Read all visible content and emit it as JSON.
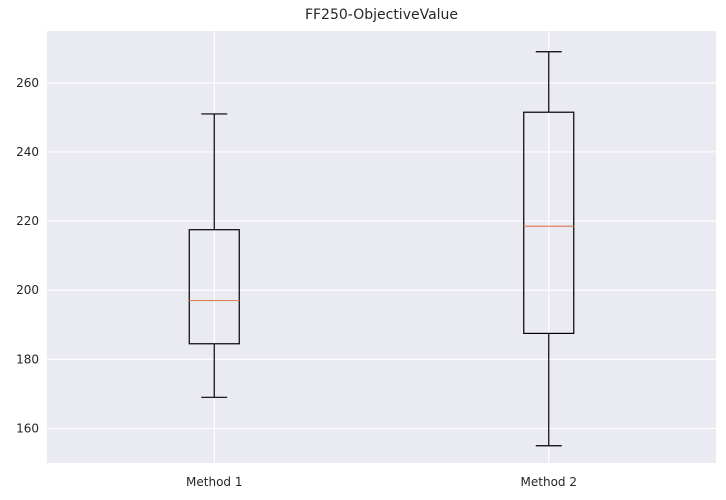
{
  "chart_data": {
    "type": "box",
    "title": "FF250-ObjectiveValue",
    "xlabel": "",
    "ylabel": "",
    "categories": [
      "Method 1",
      "Method 2"
    ],
    "boxes": [
      {
        "category": "Method 1",
        "whisker_low": 169,
        "q1": 184.5,
        "median": 197,
        "q3": 217.5,
        "whisker_high": 251
      },
      {
        "category": "Method 2",
        "whisker_low": 155,
        "q1": 187.5,
        "median": 218.5,
        "q3": 251.5,
        "whisker_high": 269
      }
    ],
    "ylim": [
      150,
      275
    ],
    "yticks": [
      160,
      180,
      200,
      220,
      240,
      260
    ],
    "grid": true,
    "colors": {
      "background": "#eaeaf2",
      "grid": "#ffffff",
      "box": "#000000",
      "median": "#e0825f",
      "text": "#262626"
    }
  }
}
